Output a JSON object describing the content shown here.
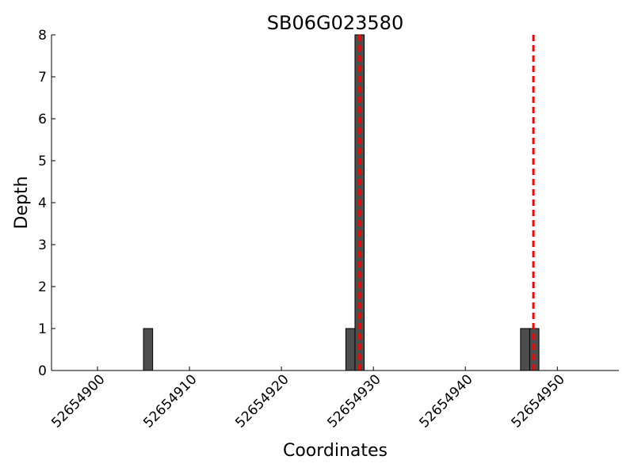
{
  "chart_data": {
    "type": "histogram",
    "title": "SB06G023580",
    "x_label": "Coordinates",
    "y_label": "Depth",
    "bins": [
      52654905,
      52654906,
      52654907,
      52654908,
      52654909,
      52654910,
      52654911,
      52654912,
      52654913,
      52654914,
      52654915,
      52654916,
      52654917,
      52654918,
      52654919,
      52654920,
      52654921,
      52654922,
      52654923,
      52654924,
      52654925,
      52654926,
      52654927,
      52654928,
      52654929,
      52654930,
      52654931,
      52654932,
      52654933,
      52654934,
      52654935,
      52654936,
      52654937,
      52654938,
      52654939,
      52654940,
      52654941,
      52654942,
      52654943,
      52654944,
      52654945,
      52654946,
      52654947,
      52654948
    ],
    "values": [
      1,
      0,
      0,
      0,
      0,
      0,
      0,
      0,
      0,
      0,
      0,
      0,
      0,
      0,
      0,
      0,
      0,
      0,
      0,
      0,
      0,
      0,
      1,
      8,
      0,
      0,
      0,
      0,
      0,
      0,
      0,
      0,
      0,
      0,
      0,
      0,
      0,
      0,
      0,
      0,
      0,
      1,
      1
    ],
    "color": "#4d4d4d",
    "vlines": [
      52654928.5,
      52654947.4
    ],
    "vline_color": "#ff0000",
    "xlim": [
      52654895,
      52654956.7
    ],
    "ylim": [
      0,
      8
    ],
    "xticks": [
      52654900,
      52654910,
      52654920,
      52654930,
      52654940,
      52654950
    ],
    "yticks": [
      0,
      1,
      2,
      3,
      4,
      5,
      6,
      7,
      8
    ]
  }
}
